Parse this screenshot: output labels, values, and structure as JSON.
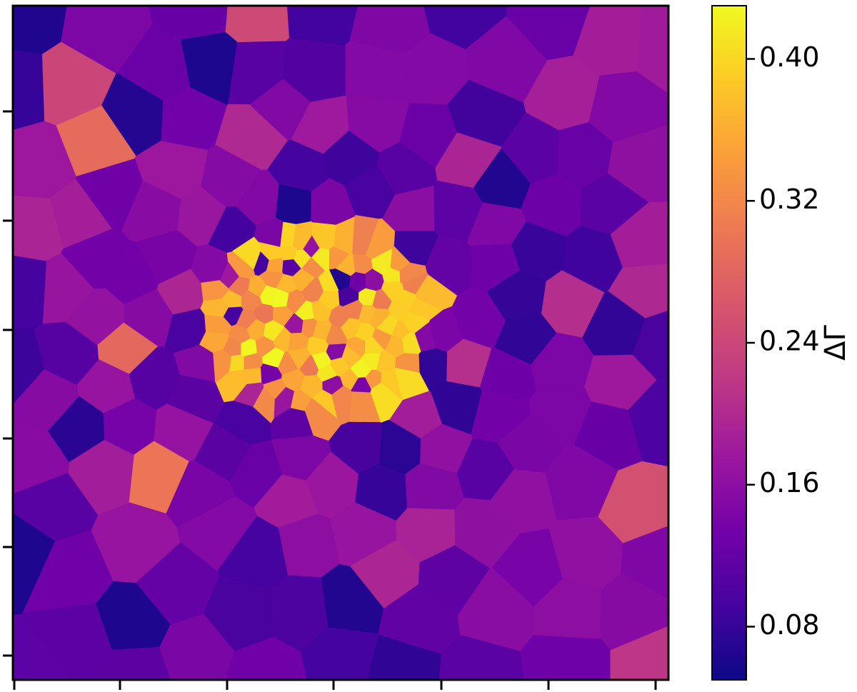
{
  "chart_data": {
    "type": "heatmap",
    "title": "",
    "xlabel": "",
    "ylabel": "",
    "x_tick_labels": [],
    "y_tick_labels": [],
    "map_style": "voronoi bins (irregular polygonal cells)",
    "colormap": "plasma",
    "colorbar": {
      "label": "ΔΓ",
      "range": [
        0.05,
        0.43
      ],
      "ticks": [
        0.08,
        0.16,
        0.24,
        0.32,
        0.4
      ],
      "tick_labels": [
        "0.08",
        "0.16",
        "0.24",
        "0.32",
        "0.40"
      ],
      "placement": "right"
    },
    "values_description": {
      "background_range": [
        0.06,
        0.2
      ],
      "center_range": [
        0.3,
        0.43
      ],
      "center_location_fraction": [
        0.47,
        0.47
      ]
    }
  },
  "colors": {
    "plasma": [
      "#0d0887",
      "#46039f",
      "#7201a8",
      "#9c179e",
      "#bd3786",
      "#d8576b",
      "#ed7953",
      "#fb9f3a",
      "#fdca26",
      "#f0f921"
    ]
  }
}
